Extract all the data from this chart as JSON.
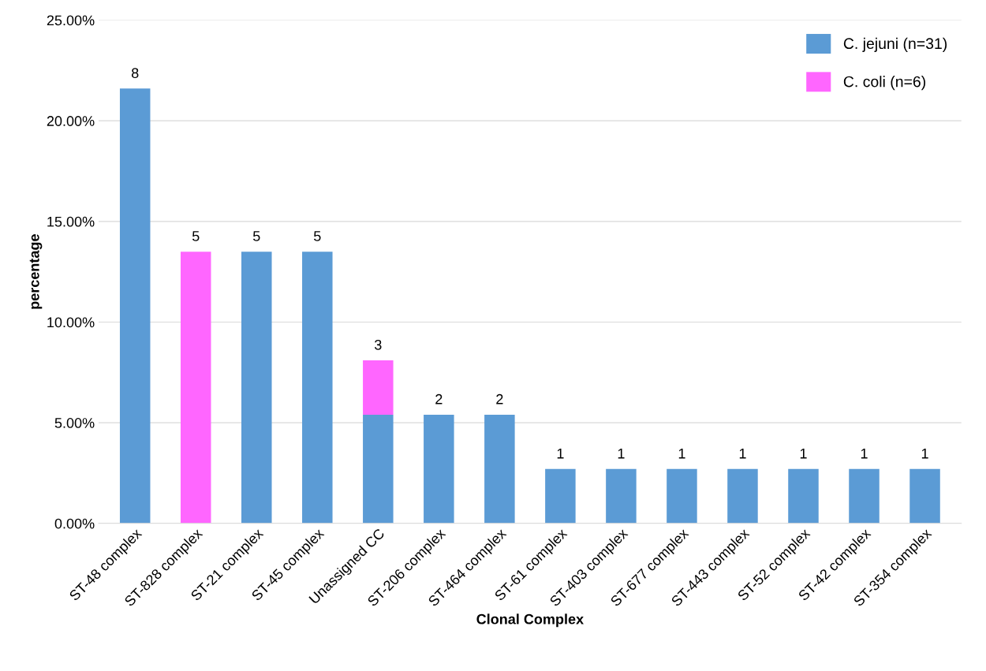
{
  "chart_data": {
    "type": "bar",
    "stacked": true,
    "xlabel": "Clonal Complex",
    "ylabel": "percentage",
    "categories": [
      "ST-48 complex",
      "ST-828 complex",
      "ST-21 complex",
      "ST-45 complex",
      "Unassigned CC",
      "ST-206 complex",
      "ST-464 complex",
      "ST-61 complex",
      "ST-403 complex",
      "ST-677 complex",
      "ST-443 complex",
      "ST-52 complex",
      "ST-42 complex",
      "ST-354 complex"
    ],
    "series": [
      {
        "name": "C. jejuni (n=31)",
        "color": "#5b9bd5",
        "values": [
          21.6,
          0,
          13.5,
          13.5,
          5.4,
          5.4,
          5.4,
          2.7,
          2.7,
          2.7,
          2.7,
          2.7,
          2.7,
          2.7
        ]
      },
      {
        "name": "C. coli (n=6)",
        "color": "#ff66ff",
        "values": [
          0,
          13.5,
          0,
          0,
          2.7,
          0,
          0,
          0,
          0,
          0,
          0,
          0,
          0,
          0
        ]
      }
    ],
    "annotations": [
      {
        "text": "8",
        "x": "ST-48 complex",
        "y": 21.6
      },
      {
        "text": "5",
        "x": "ST-828 complex",
        "y": 13.5
      },
      {
        "text": "5",
        "x": "ST-21 complex",
        "y": 13.5
      },
      {
        "text": "5",
        "x": "ST-45 complex",
        "y": 13.5
      },
      {
        "text": "3",
        "x": "Unassigned CC",
        "y": 8.1
      },
      {
        "text": "2",
        "x": "ST-206 complex",
        "y": 5.4
      },
      {
        "text": "2",
        "x": "ST-464 complex",
        "y": 5.4
      },
      {
        "text": "1",
        "x": "ST-61 complex",
        "y": 2.7
      },
      {
        "text": "1",
        "x": "ST-403 complex",
        "y": 2.7
      },
      {
        "text": "1",
        "x": "ST-677 complex",
        "y": 2.7
      },
      {
        "text": "1",
        "x": "ST-443 complex",
        "y": 2.7
      },
      {
        "text": "1",
        "x": "ST-52 complex",
        "y": 2.7
      },
      {
        "text": "1",
        "x": "ST-42 complex",
        "y": 2.7
      },
      {
        "text": "1",
        "x": "ST-354 complex",
        "y": 2.7
      }
    ],
    "ylim": [
      0,
      25
    ],
    "yticks": [
      {
        "value": 0,
        "label": "0.00%"
      },
      {
        "value": 5,
        "label": "5.00%"
      },
      {
        "value": 10,
        "label": "10.00%"
      },
      {
        "value": 15,
        "label": "15.00%"
      },
      {
        "value": 20,
        "label": "20.00%"
      },
      {
        "value": 25,
        "label": "25.00%"
      }
    ],
    "grid": "y",
    "legend": "top right"
  }
}
